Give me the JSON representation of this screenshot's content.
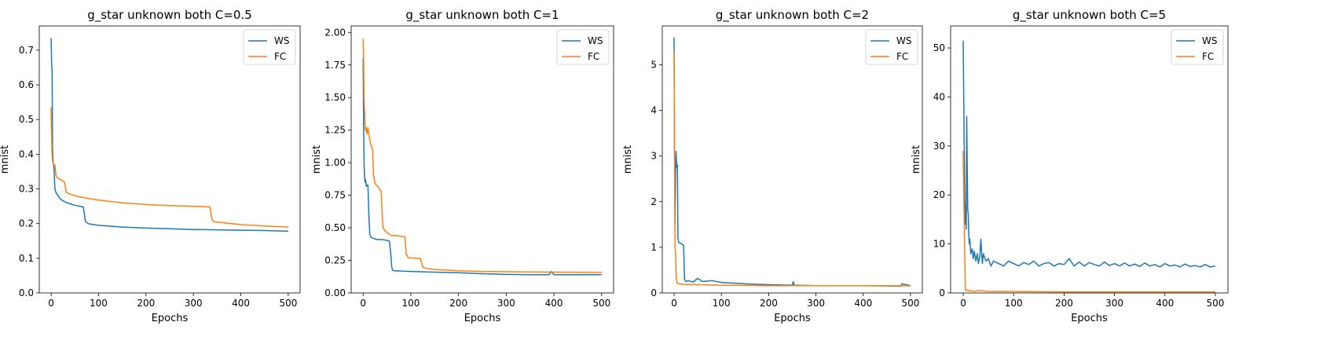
{
  "figure": {
    "series_colors": {
      "WS": "#1f77b4",
      "FC": "#ff7f0e"
    }
  },
  "chart_data": [
    {
      "type": "line",
      "title": "g_star unknown both C=0.5",
      "xlabel": "Epochs",
      "ylabel": "mnist",
      "xlim": [
        -25,
        525
      ],
      "ylim": [
        0.0,
        0.77
      ],
      "xticks": [
        0,
        100,
        200,
        300,
        400,
        500
      ],
      "yticks": [
        0.0,
        0.1,
        0.2,
        0.3,
        0.4,
        0.5,
        0.6,
        0.7
      ],
      "ytick_labels": [
        "0.0",
        "0.1",
        "0.2",
        "0.3",
        "0.4",
        "0.5",
        "0.6",
        "0.7"
      ],
      "legend": {
        "position": "top-right",
        "entries": [
          "WS",
          "FC"
        ]
      },
      "series": [
        {
          "name": "WS",
          "color": "#1f77b4",
          "x": [
            0,
            1,
            2,
            3,
            4,
            5,
            6,
            8,
            10,
            15,
            20,
            30,
            40,
            50,
            60,
            68,
            70,
            72,
            75,
            80,
            100,
            150,
            200,
            250,
            300,
            350,
            400,
            450,
            500
          ],
          "y": [
            0.735,
            0.66,
            0.64,
            0.42,
            0.38,
            0.37,
            0.36,
            0.3,
            0.29,
            0.28,
            0.27,
            0.262,
            0.257,
            0.253,
            0.25,
            0.248,
            0.23,
            0.207,
            0.203,
            0.199,
            0.195,
            0.19,
            0.187,
            0.185,
            0.183,
            0.182,
            0.181,
            0.18,
            0.178
          ]
        },
        {
          "name": "FC",
          "color": "#ff7f0e",
          "x": [
            0,
            1,
            2,
            3,
            4,
            5,
            8,
            10,
            12,
            15,
            20,
            28,
            30,
            32,
            40,
            60,
            100,
            150,
            200,
            250,
            300,
            335,
            338,
            340,
            345,
            360,
            400,
            450,
            500
          ],
          "y": [
            0.535,
            0.45,
            0.4,
            0.38,
            0.375,
            0.37,
            0.37,
            0.34,
            0.335,
            0.33,
            0.327,
            0.32,
            0.305,
            0.29,
            0.285,
            0.277,
            0.268,
            0.26,
            0.255,
            0.252,
            0.25,
            0.248,
            0.22,
            0.21,
            0.205,
            0.203,
            0.197,
            0.193,
            0.19
          ]
        }
      ]
    },
    {
      "type": "line",
      "title": "g_star unknown both C=1",
      "xlabel": "Epochs",
      "ylabel": "mnist",
      "xlim": [
        -25,
        525
      ],
      "ylim": [
        0.0,
        2.05
      ],
      "xticks": [
        0,
        100,
        200,
        300,
        400,
        500
      ],
      "yticks": [
        0.0,
        0.25,
        0.5,
        0.75,
        1.0,
        1.25,
        1.5,
        1.75,
        2.0
      ],
      "ytick_labels": [
        "0.00",
        "0.25",
        "0.50",
        "0.75",
        "1.00",
        "1.25",
        "1.50",
        "1.75",
        "2.00"
      ],
      "legend": {
        "position": "top-right",
        "entries": [
          "WS",
          "FC"
        ]
      },
      "series": [
        {
          "name": "WS",
          "color": "#1f77b4",
          "x": [
            0,
            1,
            2,
            3,
            4,
            5,
            7,
            10,
            12,
            14,
            16,
            20,
            30,
            40,
            55,
            58,
            60,
            62,
            65,
            80,
            100,
            150,
            200,
            250,
            300,
            350,
            390,
            395,
            400,
            450,
            500
          ],
          "y": [
            1.8,
            1.3,
            1.0,
            0.9,
            0.85,
            0.87,
            0.82,
            0.83,
            0.6,
            0.45,
            0.43,
            0.42,
            0.41,
            0.41,
            0.4,
            0.3,
            0.2,
            0.175,
            0.17,
            0.168,
            0.165,
            0.16,
            0.155,
            0.148,
            0.142,
            0.14,
            0.14,
            0.165,
            0.14,
            0.14,
            0.14
          ]
        },
        {
          "name": "FC",
          "color": "#ff7f0e",
          "x": [
            0,
            1,
            2,
            3,
            4,
            5,
            6,
            8,
            10,
            15,
            20,
            22,
            25,
            30,
            38,
            40,
            42,
            45,
            55,
            60,
            70,
            88,
            90,
            95,
            120,
            125,
            130,
            150,
            200,
            250,
            300,
            400,
            500
          ],
          "y": [
            1.95,
            1.8,
            1.5,
            1.4,
            1.3,
            1.25,
            1.27,
            1.22,
            1.27,
            1.15,
            1.1,
            0.9,
            0.84,
            0.82,
            0.78,
            0.6,
            0.5,
            0.48,
            0.45,
            0.44,
            0.44,
            0.43,
            0.3,
            0.27,
            0.265,
            0.2,
            0.19,
            0.18,
            0.17,
            0.165,
            0.163,
            0.16,
            0.158
          ]
        }
      ]
    },
    {
      "type": "line",
      "title": "g_star unknown both C=2",
      "xlabel": "Epochs",
      "ylabel": "mnist",
      "xlim": [
        -25,
        525
      ],
      "ylim": [
        0.0,
        5.85
      ],
      "xticks": [
        0,
        100,
        200,
        300,
        400,
        500
      ],
      "yticks": [
        0,
        1,
        2,
        3,
        4,
        5
      ],
      "ytick_labels": [
        "0",
        "1",
        "2",
        "3",
        "4",
        "5"
      ],
      "legend": {
        "position": "top-right",
        "entries": [
          "WS",
          "FC"
        ]
      },
      "series": [
        {
          "name": "WS",
          "color": "#1f77b4",
          "x": [
            0,
            1,
            2,
            3,
            4,
            5,
            6,
            7,
            8,
            10,
            12,
            15,
            20,
            22,
            25,
            30,
            40,
            50,
            60,
            80,
            100,
            150,
            200,
            250,
            252,
            254,
            300,
            400,
            480,
            482,
            500
          ],
          "y": [
            5.6,
            3.0,
            1.5,
            2.6,
            3.1,
            2.85,
            2.75,
            2.8,
            1.2,
            1.1,
            1.1,
            1.08,
            1.05,
            0.3,
            0.25,
            0.27,
            0.24,
            0.32,
            0.25,
            0.27,
            0.23,
            0.2,
            0.18,
            0.17,
            0.25,
            0.17,
            0.16,
            0.16,
            0.15,
            0.2,
            0.16
          ]
        },
        {
          "name": "FC",
          "color": "#ff7f0e",
          "x": [
            0,
            1,
            2,
            3,
            4,
            6,
            10,
            20,
            50,
            100,
            200,
            300,
            400,
            500
          ],
          "y": [
            5.3,
            3.0,
            1.0,
            0.9,
            0.4,
            0.22,
            0.2,
            0.19,
            0.18,
            0.17,
            0.16,
            0.16,
            0.16,
            0.155
          ]
        }
      ]
    },
    {
      "type": "line",
      "title": "g_star unknown both C=5",
      "xlabel": "Epochs",
      "ylabel": "mnist",
      "xlim": [
        -25,
        525
      ],
      "ylim": [
        0,
        54.5
      ],
      "xticks": [
        0,
        100,
        200,
        300,
        400,
        500
      ],
      "yticks": [
        0,
        10,
        20,
        30,
        40,
        50
      ],
      "ytick_labels": [
        "0",
        "10",
        "20",
        "30",
        "40",
        "50"
      ],
      "legend": {
        "position": "top-right",
        "entries": [
          "WS",
          "FC"
        ]
      },
      "series": [
        {
          "name": "WS",
          "color": "#1f77b4",
          "x": [
            0,
            1,
            2,
            3,
            4,
            5,
            6,
            7,
            8,
            9,
            10,
            11,
            12,
            13,
            15,
            18,
            20,
            22,
            25,
            28,
            30,
            33,
            35,
            38,
            40,
            45,
            50,
            55,
            60,
            70,
            80,
            90,
            100,
            110,
            120,
            130,
            140,
            150,
            160,
            170,
            180,
            190,
            200,
            210,
            220,
            230,
            240,
            250,
            260,
            270,
            280,
            290,
            300,
            310,
            320,
            330,
            340,
            350,
            360,
            370,
            380,
            390,
            400,
            410,
            420,
            430,
            440,
            450,
            460,
            470,
            480,
            490,
            500
          ],
          "y": [
            51.5,
            40,
            30,
            20,
            14,
            18,
            13,
            36,
            25,
            17,
            16,
            12,
            10,
            11,
            8,
            9,
            7,
            8.5,
            6.5,
            8,
            6,
            7.5,
            11,
            6,
            8,
            6.5,
            7,
            5.5,
            6.5,
            6,
            5.5,
            6.5,
            6,
            5.5,
            6.2,
            5.8,
            6.5,
            5.5,
            6,
            6.2,
            5.5,
            6,
            5.8,
            7,
            5.5,
            6.3,
            5.5,
            6.2,
            5.8,
            5.5,
            6.3,
            5.6,
            6,
            5.5,
            6.1,
            5.5,
            5.9,
            5.4,
            6.1,
            5.5,
            5.8,
            5.3,
            6,
            5.5,
            5.7,
            5.3,
            5.9,
            5.4,
            5.6,
            5.3,
            5.8,
            5.3,
            5.5
          ]
        },
        {
          "name": "FC",
          "color": "#ff7f0e",
          "x": [
            0,
            1,
            2,
            3,
            4,
            5,
            8,
            10,
            15,
            20,
            30,
            50,
            100,
            200,
            300,
            400,
            500
          ],
          "y": [
            29,
            20,
            15,
            8,
            1.5,
            0.5,
            0.6,
            0.4,
            0.5,
            0.3,
            0.5,
            0.3,
            0.3,
            0.2,
            0.2,
            0.2,
            0.2
          ]
        }
      ]
    }
  ]
}
